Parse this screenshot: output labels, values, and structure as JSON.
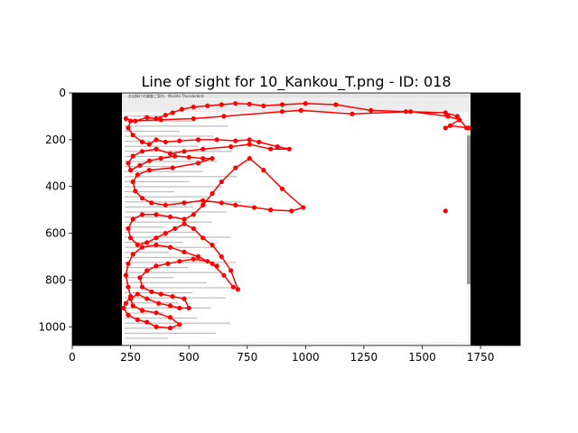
{
  "chart_data": {
    "type": "line",
    "title": "Line of sight for 10_Kankou_T.png - ID: 018",
    "xlabel": "",
    "ylabel": "",
    "xlim": [
      0,
      1920
    ],
    "ylim": [
      1080,
      0
    ],
    "x_ticks": [
      0,
      250,
      500,
      750,
      1000,
      1250,
      1500,
      1750
    ],
    "y_ticks": [
      0,
      200,
      400,
      600,
      800,
      1000
    ],
    "grid": false,
    "legend": "none",
    "background_image": {
      "description_hidden": true,
      "black_bars": [
        [
          0,
          210
        ],
        [
          1710,
          1920
        ]
      ],
      "screen_region": {
        "x": [
          210,
          1710
        ],
        "y": [
          0,
          1080
        ]
      },
      "window_title": "お出掛けの調査ご案内 - Mozilla Thunderbird"
    },
    "series": [
      {
        "color": "#ff0000",
        "points": [
          [
            230,
            110
          ],
          [
            270,
            120
          ],
          [
            320,
            105
          ],
          [
            360,
            110
          ],
          [
            400,
            95
          ],
          [
            430,
            85
          ],
          [
            470,
            70
          ],
          [
            520,
            60
          ],
          [
            580,
            55
          ],
          [
            640,
            50
          ],
          [
            700,
            45
          ],
          [
            760,
            48
          ],
          [
            820,
            55
          ],
          [
            900,
            50
          ],
          [
            1000,
            45
          ],
          [
            1130,
            50
          ],
          [
            1280,
            75
          ],
          [
            1430,
            80
          ],
          [
            1600,
            85
          ],
          [
            1650,
            100
          ],
          [
            1690,
            150
          ],
          [
            1700,
            150
          ],
          [
            1620,
            140
          ],
          [
            1600,
            150
          ],
          [
            1660,
            115
          ],
          [
            1610,
            100
          ],
          [
            1450,
            80
          ],
          [
            1200,
            90
          ],
          [
            980,
            75
          ],
          [
            900,
            80
          ],
          [
            650,
            100
          ],
          [
            520,
            110
          ],
          [
            380,
            115
          ],
          [
            250,
            120
          ],
          [
            240,
            150
          ],
          [
            260,
            180
          ],
          [
            300,
            210
          ],
          [
            330,
            220
          ],
          [
            360,
            200
          ],
          [
            400,
            210
          ],
          [
            460,
            205
          ],
          [
            540,
            200
          ],
          [
            620,
            200
          ],
          [
            700,
            205
          ],
          [
            760,
            200
          ],
          [
            800,
            210
          ],
          [
            880,
            230
          ],
          [
            930,
            240
          ],
          [
            850,
            240
          ],
          [
            760,
            220
          ],
          [
            680,
            230
          ],
          [
            560,
            240
          ],
          [
            480,
            250
          ],
          [
            420,
            260
          ],
          [
            360,
            240
          ],
          [
            300,
            250
          ],
          [
            260,
            270
          ],
          [
            240,
            300
          ],
          [
            250,
            330
          ],
          [
            290,
            310
          ],
          [
            330,
            290
          ],
          [
            380,
            280
          ],
          [
            440,
            270
          ],
          [
            500,
            275
          ],
          [
            560,
            280
          ],
          [
            600,
            280
          ],
          [
            540,
            300
          ],
          [
            430,
            320
          ],
          [
            330,
            330
          ],
          [
            280,
            350
          ],
          [
            260,
            380
          ],
          [
            270,
            420
          ],
          [
            300,
            450
          ],
          [
            340,
            470
          ],
          [
            400,
            480
          ],
          [
            480,
            470
          ],
          [
            560,
            460
          ],
          [
            640,
            470
          ],
          [
            700,
            480
          ],
          [
            780,
            490
          ],
          [
            850,
            500
          ],
          [
            940,
            505
          ],
          [
            990,
            490
          ],
          [
            900,
            410
          ],
          [
            820,
            330
          ],
          [
            760,
            280
          ],
          [
            700,
            320
          ],
          [
            640,
            380
          ],
          [
            600,
            430
          ],
          [
            560,
            480
          ],
          [
            520,
            520
          ],
          [
            480,
            540
          ],
          [
            420,
            530
          ],
          [
            360,
            520
          ],
          [
            300,
            520
          ],
          [
            260,
            540
          ],
          [
            240,
            580
          ],
          [
            250,
            620
          ],
          [
            280,
            650
          ],
          [
            320,
            640
          ],
          [
            360,
            620
          ],
          [
            400,
            600
          ],
          [
            440,
            580
          ],
          [
            480,
            560
          ],
          [
            520,
            580
          ],
          [
            560,
            620
          ],
          [
            600,
            650
          ],
          [
            640,
            700
          ],
          [
            680,
            760
          ],
          [
            710,
            840
          ],
          [
            690,
            830
          ],
          [
            650,
            780
          ],
          [
            600,
            730
          ],
          [
            540,
            700
          ],
          [
            480,
            680
          ],
          [
            420,
            660
          ],
          [
            360,
            650
          ],
          [
            300,
            660
          ],
          [
            260,
            690
          ],
          [
            240,
            730
          ],
          [
            230,
            780
          ],
          [
            240,
            830
          ],
          [
            250,
            870
          ],
          [
            230,
            900
          ],
          [
            220,
            920
          ],
          [
            240,
            950
          ],
          [
            280,
            970
          ],
          [
            320,
            980
          ],
          [
            360,
            1000
          ],
          [
            420,
            1005
          ],
          [
            460,
            990
          ],
          [
            420,
            960
          ],
          [
            360,
            940
          ],
          [
            300,
            930
          ],
          [
            260,
            910
          ],
          [
            250,
            880
          ],
          [
            280,
            860
          ],
          [
            320,
            880
          ],
          [
            370,
            900
          ],
          [
            420,
            910
          ],
          [
            460,
            920
          ],
          [
            500,
            920
          ],
          [
            480,
            880
          ],
          [
            430,
            870
          ],
          [
            380,
            860
          ],
          [
            340,
            850
          ],
          [
            300,
            830
          ],
          [
            290,
            790
          ],
          [
            320,
            760
          ],
          [
            360,
            740
          ],
          [
            410,
            730
          ],
          [
            460,
            720
          ],
          [
            520,
            710
          ],
          [
            580,
            720
          ],
          [
            620,
            740
          ]
        ]
      },
      {
        "color": "#ff0000",
        "points": [
          [
            1600,
            505
          ]
        ]
      }
    ]
  }
}
